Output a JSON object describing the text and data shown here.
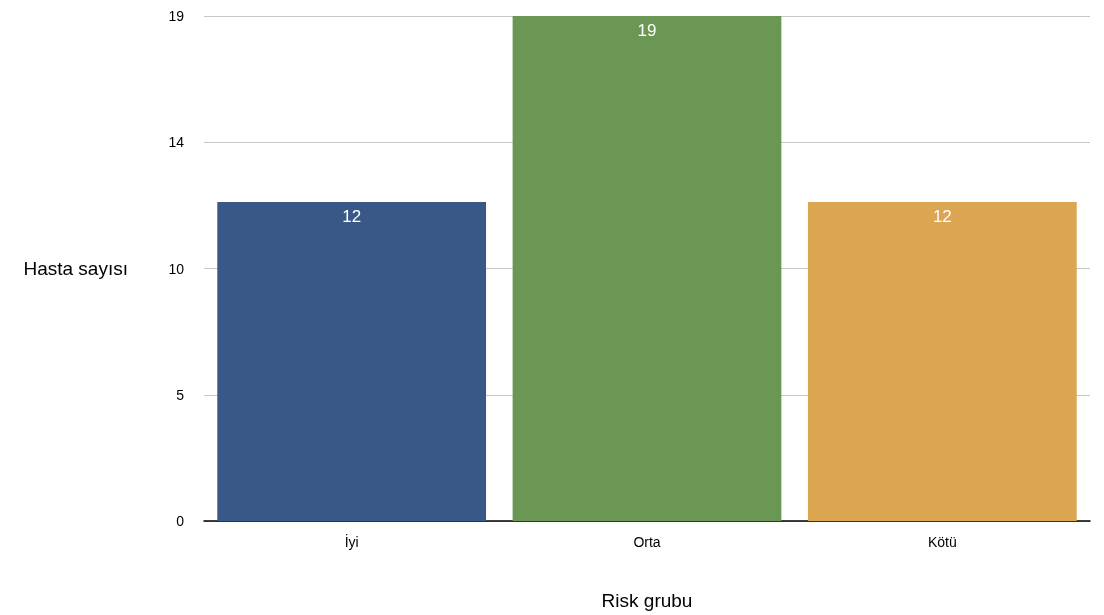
{
  "chart_data": {
    "type": "bar",
    "xlabel": "Risk grubu",
    "ylabel": "Hasta sayısı",
    "categories": [
      "İyi",
      "Orta",
      "Kötü"
    ],
    "values": [
      12,
      19,
      12
    ],
    "colors": [
      "#3a5887",
      "#6b9755",
      "#dca552"
    ],
    "ylim": [
      0,
      19
    ],
    "yticks": [
      0,
      {
        "value": 4.75,
        "label": "5"
      },
      {
        "value": 9.5,
        "label": "10"
      },
      {
        "value": 14.25,
        "label": "14"
      },
      19
    ],
    "grid": "y",
    "data_labels": true
  }
}
